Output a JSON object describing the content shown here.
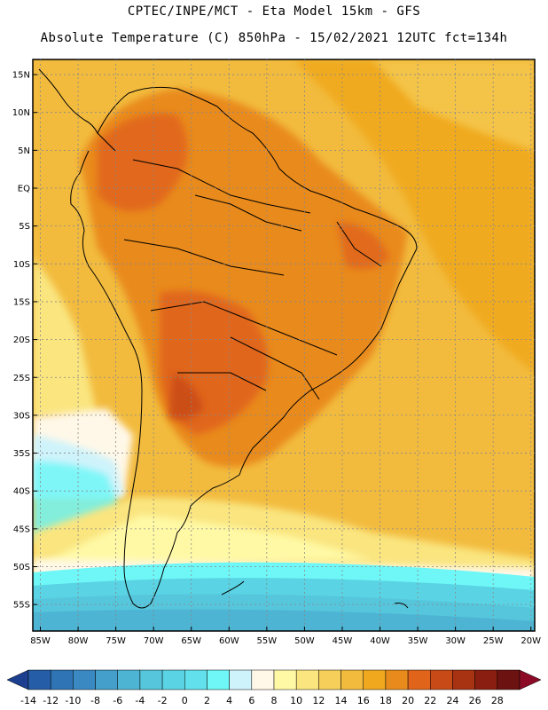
{
  "header": {
    "line1": "CPTEC/INPE/MCT -  Eta Model 15km - GFS",
    "line2": "Absolute Temperature (C) 850hPa - 15/02/2021 12UTC fct=134h"
  },
  "map": {
    "lon_labels": [
      "85W",
      "80W",
      "75W",
      "70W",
      "65W",
      "60W",
      "55W",
      "50W",
      "45W",
      "40W",
      "35W",
      "30W",
      "25W",
      "20W"
    ],
    "lon_values": [
      -85,
      -80,
      -75,
      -70,
      -65,
      -60,
      -55,
      -50,
      -45,
      -40,
      -35,
      -30,
      -25,
      -20
    ],
    "lat_labels": [
      "15N",
      "10N",
      "5N",
      "EQ",
      "5S",
      "10S",
      "15S",
      "20S",
      "25S",
      "30S",
      "35S",
      "40S",
      "45S",
      "50S",
      "55S"
    ],
    "lat_values": [
      15,
      10,
      5,
      0,
      -5,
      -10,
      -15,
      -20,
      -25,
      -30,
      -35,
      -40,
      -45,
      -50,
      -55
    ],
    "lon_range": [
      -86,
      -19.5
    ],
    "lat_range": [
      -58.5,
      17
    ]
  },
  "colorbar": {
    "labels": [
      "-14",
      "-12",
      "-10",
      "-8",
      "-6",
      "-4",
      "-2",
      "0",
      "2",
      "4",
      "6",
      "8",
      "10",
      "12",
      "14",
      "16",
      "18",
      "20",
      "22",
      "24",
      "26",
      "28"
    ],
    "colors": [
      "#1d3f8f",
      "#255ea6",
      "#2f74b5",
      "#3a89c2",
      "#449fcb",
      "#4db4d4",
      "#56c6dc",
      "#5ad4e4",
      "#62e0ec",
      "#6ff7f7",
      "#cff3fb",
      "#fff8e8",
      "#fff9a6",
      "#fae57f",
      "#f6cf5a",
      "#f2bb3e",
      "#f0a91f",
      "#e98a1c",
      "#e0641a",
      "#c84a17",
      "#a83313",
      "#8a1e10",
      "#6c1210",
      "#8d0a27"
    ]
  }
}
